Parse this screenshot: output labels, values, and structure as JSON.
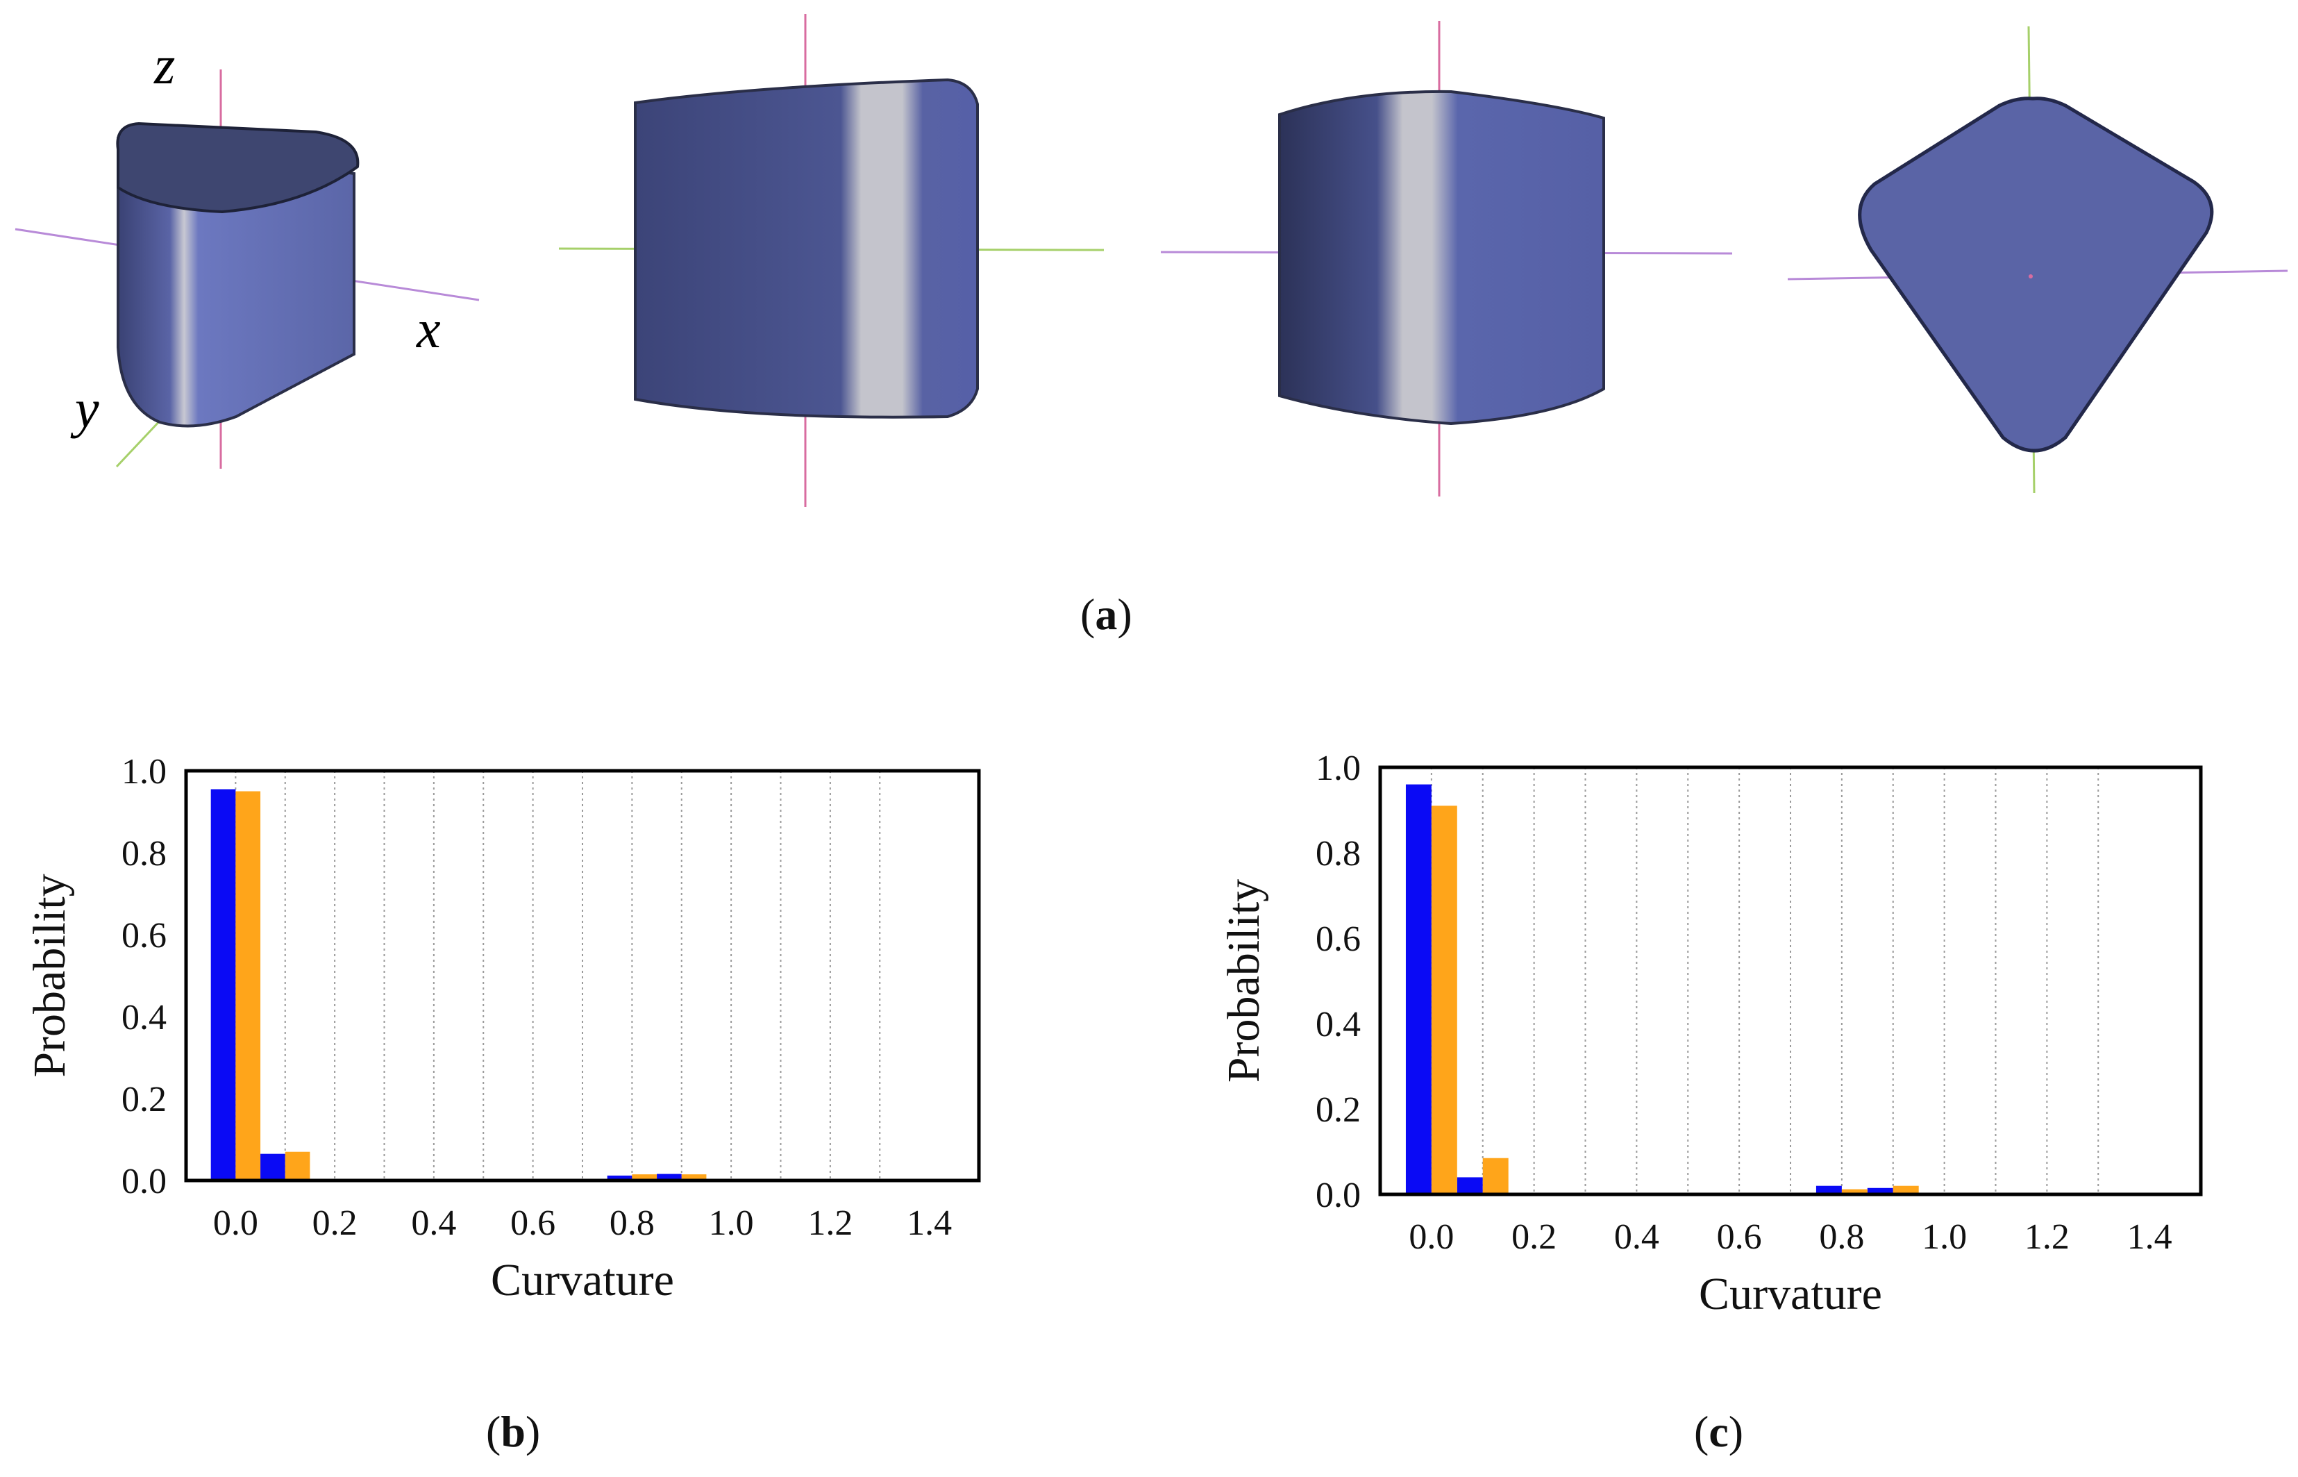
{
  "figure": {
    "panel_labels": {
      "a": {
        "open": "(",
        "letter": "a",
        "close": ")"
      },
      "b": {
        "open": "(",
        "letter": "b",
        "close": ")"
      },
      "c": {
        "open": "(",
        "letter": "c",
        "close": ")"
      }
    },
    "axis_letters": {
      "x": "x",
      "y": "y",
      "z": "z"
    },
    "colors": {
      "shape_face": "#5a64a6",
      "shape_dark": "#343c68",
      "shape_top": "#3e4670",
      "stripe": "#c8c8d2",
      "axis_red": "#d86ca0",
      "axis_green": "#a6d06a",
      "axis_violet": "#b88ad8",
      "bar_blue": "#0a0af5",
      "bar_orange": "#ffa51a"
    }
  },
  "chart_data": [
    {
      "type": "bar",
      "panel": "b",
      "xlabel": "Curvature",
      "ylabel": "Probability",
      "xlim": [
        -0.1,
        1.5
      ],
      "ylim": [
        0,
        1.0
      ],
      "xticks": [
        "0.0",
        "0.2",
        "0.4",
        "0.6",
        "0.8",
        "1.0",
        "1.2",
        "1.4"
      ],
      "yticks": [
        "0.0",
        "0.2",
        "0.4",
        "0.6",
        "0.8",
        "1.0"
      ],
      "grid": "vertical-dotted",
      "series": [
        {
          "color": "#0a0af5",
          "x": [
            0.0,
            0.1,
            0.8,
            0.9
          ],
          "values": [
            0.955,
            0.065,
            0.012,
            0.016
          ]
        },
        {
          "color": "#ffa51a",
          "x": [
            0.0,
            0.1,
            0.8,
            0.9
          ],
          "values": [
            0.95,
            0.07,
            0.015,
            0.015
          ]
        }
      ]
    },
    {
      "type": "bar",
      "panel": "c",
      "xlabel": "Curvature",
      "ylabel": "Probability",
      "xlim": [
        -0.1,
        1.5
      ],
      "ylim": [
        0,
        1.0
      ],
      "xticks": [
        "0.0",
        "0.2",
        "0.4",
        "0.6",
        "0.8",
        "1.0",
        "1.2",
        "1.4"
      ],
      "yticks": [
        "0.0",
        "0.2",
        "0.4",
        "0.6",
        "0.8",
        "1.0"
      ],
      "grid": "vertical-dotted",
      "series": [
        {
          "color": "#0a0af5",
          "x": [
            0.0,
            0.1,
            0.8,
            0.9
          ],
          "values": [
            0.96,
            0.04,
            0.02,
            0.015
          ]
        },
        {
          "color": "#ffa51a",
          "x": [
            0.0,
            0.1,
            0.8,
            0.9
          ],
          "values": [
            0.91,
            0.085,
            0.012,
            0.02
          ]
        }
      ]
    }
  ]
}
